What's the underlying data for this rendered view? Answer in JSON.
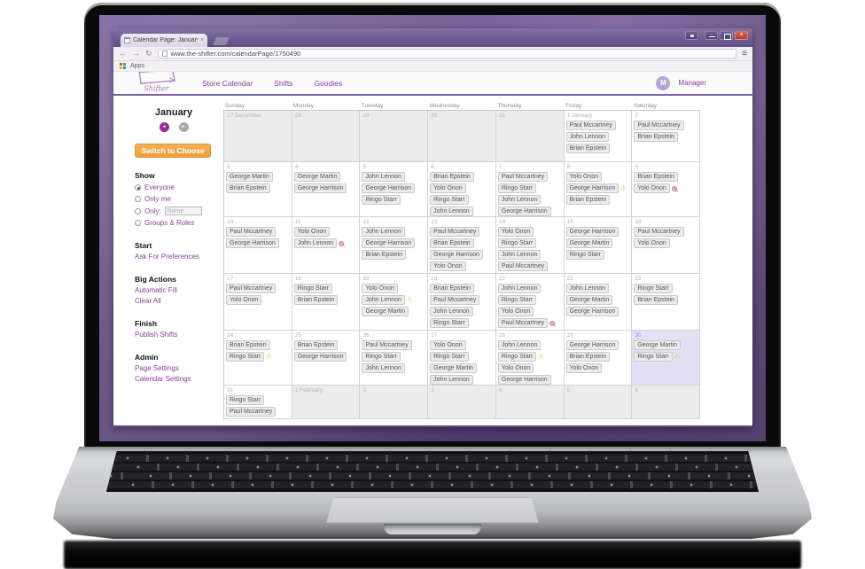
{
  "browser": {
    "tab_title": "Calendar Page: January | S",
    "url": "www.the-shifter.com/calendarPage/1750490",
    "bookmarks_label": "Apps"
  },
  "header": {
    "logo_text": "Shifter",
    "nav": [
      {
        "label": "Store Calendar"
      },
      {
        "label": "Shifts"
      },
      {
        "label": "Goodies"
      }
    ],
    "avatar_initial": "M",
    "user_role": "Manager"
  },
  "sidebar": {
    "month": "January",
    "switch_button": "Switch to Choose",
    "show": {
      "heading": "Show",
      "options": [
        {
          "label": "Everyone",
          "checked": true
        },
        {
          "label": "Only me",
          "checked": false
        },
        {
          "label": "Only:",
          "checked": false,
          "input_placeholder": "Name"
        },
        {
          "label": "Groups & Roles",
          "checked": false
        }
      ]
    },
    "sections": [
      {
        "heading": "Start",
        "links": [
          "Ask For Preferences"
        ]
      },
      {
        "heading": "Big Actions",
        "links": [
          "Automatic Fill",
          "Clear All"
        ]
      },
      {
        "heading": "Finish",
        "links": [
          "Publish Shifts"
        ]
      },
      {
        "heading": "Admin",
        "links": [
          "Page Settings",
          "Calendar Settings"
        ]
      }
    ]
  },
  "calendar": {
    "weekday_headers": [
      "Sunday",
      "Monday",
      "Tuesday",
      "Wednesday",
      "Thursday",
      "Friday",
      "Saturday"
    ],
    "weeks": [
      [
        {
          "day": "27 December",
          "outside": true
        },
        {
          "day": "28",
          "outside": true
        },
        {
          "day": "29",
          "outside": true
        },
        {
          "day": "30",
          "outside": true
        },
        {
          "day": "31",
          "outside": true
        },
        {
          "day": "1 January",
          "shifts": [
            {
              "name": "Paul Mccartney"
            },
            {
              "name": "John Lennon"
            },
            {
              "name": "Brian Epstein"
            }
          ]
        },
        {
          "day": "2",
          "shifts": [
            {
              "name": "Paul Mccartney"
            },
            {
              "name": "Brian Epstein"
            }
          ]
        }
      ],
      [
        {
          "day": "3",
          "shifts": [
            {
              "name": "George Martin"
            },
            {
              "name": "Brian Epstein"
            }
          ]
        },
        {
          "day": "4",
          "shifts": [
            {
              "name": "George Martin"
            },
            {
              "name": "George Harrison"
            }
          ]
        },
        {
          "day": "5",
          "shifts": [
            {
              "name": "John Lennon"
            },
            {
              "name": "George Harrison"
            },
            {
              "name": "Ringo Starr"
            }
          ]
        },
        {
          "day": "6",
          "shifts": [
            {
              "name": "Brian Epstein"
            },
            {
              "name": "Yolo Onon"
            },
            {
              "name": "Ringo Starr"
            },
            {
              "name": "John Lennon"
            }
          ]
        },
        {
          "day": "7",
          "shifts": [
            {
              "name": "Paul Mccartney"
            },
            {
              "name": "Ringo Starr"
            },
            {
              "name": "John Lennon"
            },
            {
              "name": "George Harrison"
            }
          ]
        },
        {
          "day": "8",
          "shifts": [
            {
              "name": "Yolo Onon"
            },
            {
              "name": "George Harrison",
              "icon": "warning"
            },
            {
              "name": "Brian Epstein"
            }
          ]
        },
        {
          "day": "9",
          "shifts": [
            {
              "name": "Brian Epstein"
            },
            {
              "name": "Yolo Onon",
              "icon": "blocked"
            }
          ]
        }
      ],
      [
        {
          "day": "10",
          "shifts": [
            {
              "name": "Paul Mccartney"
            },
            {
              "name": "George Harrison"
            }
          ]
        },
        {
          "day": "11",
          "shifts": [
            {
              "name": "Yolo Onon"
            },
            {
              "name": "John Lennon",
              "icon": "blocked"
            }
          ]
        },
        {
          "day": "12",
          "shifts": [
            {
              "name": "John Lennon"
            },
            {
              "name": "George Harrison"
            },
            {
              "name": "Brian Epstein"
            }
          ]
        },
        {
          "day": "13",
          "shifts": [
            {
              "name": "Paul Mccartney"
            },
            {
              "name": "Brian Epstein"
            },
            {
              "name": "George Harrison"
            },
            {
              "name": "Yolo Onon"
            }
          ]
        },
        {
          "day": "14",
          "shifts": [
            {
              "name": "Yolo Onon"
            },
            {
              "name": "Ringo Starr"
            },
            {
              "name": "John Lennon"
            },
            {
              "name": "Paul Mccartney"
            }
          ]
        },
        {
          "day": "15",
          "shifts": [
            {
              "name": "George Harrison"
            },
            {
              "name": "George Martin"
            },
            {
              "name": "Ringo Starr"
            }
          ]
        },
        {
          "day": "16",
          "shifts": [
            {
              "name": "Paul Mccartney"
            },
            {
              "name": "Yolo Onon"
            }
          ]
        }
      ],
      [
        {
          "day": "17",
          "shifts": [
            {
              "name": "Paul Mccartney"
            },
            {
              "name": "Yolo Onon"
            }
          ]
        },
        {
          "day": "18",
          "shifts": [
            {
              "name": "Ringo Starr"
            },
            {
              "name": "Brian Epstein"
            }
          ]
        },
        {
          "day": "19",
          "shifts": [
            {
              "name": "Yolo Onon"
            },
            {
              "name": "John Lennon",
              "icon": "warning"
            },
            {
              "name": "George Martin"
            }
          ]
        },
        {
          "day": "20",
          "shifts": [
            {
              "name": "Brian Epstein"
            },
            {
              "name": "Paul Mccartney"
            },
            {
              "name": "John Lennon"
            },
            {
              "name": "Ringo Starr"
            }
          ]
        },
        {
          "day": "21",
          "shifts": [
            {
              "name": "John Lennon"
            },
            {
              "name": "Ringo Starr"
            },
            {
              "name": "Yolo Onon"
            },
            {
              "name": "Paul Mccartney",
              "icon": "blocked"
            }
          ]
        },
        {
          "day": "22",
          "shifts": [
            {
              "name": "John Lennon"
            },
            {
              "name": "George Martin"
            },
            {
              "name": "George Harrison"
            }
          ]
        },
        {
          "day": "23",
          "shifts": [
            {
              "name": "Ringo Starr"
            },
            {
              "name": "Brian Epstein"
            }
          ]
        }
      ],
      [
        {
          "day": "24",
          "shifts": [
            {
              "name": "Brian Epstein"
            },
            {
              "name": "Ringo Starr",
              "icon": "warning"
            }
          ]
        },
        {
          "day": "25",
          "shifts": [
            {
              "name": "Brian Epstein"
            },
            {
              "name": "George Harrison"
            }
          ]
        },
        {
          "day": "26",
          "shifts": [
            {
              "name": "Paul Mccartney"
            },
            {
              "name": "Ringo Starr"
            },
            {
              "name": "John Lennon"
            }
          ]
        },
        {
          "day": "27",
          "shifts": [
            {
              "name": "Yolo Onon"
            },
            {
              "name": "Ringo Starr"
            },
            {
              "name": "George Martin"
            },
            {
              "name": "John Lennon"
            }
          ]
        },
        {
          "day": "28",
          "shifts": [
            {
              "name": "John Lennon"
            },
            {
              "name": "Ringo Starr",
              "icon": "warning"
            },
            {
              "name": "Yolo Onon"
            },
            {
              "name": "George Harrison"
            }
          ]
        },
        {
          "day": "29",
          "shifts": [
            {
              "name": "George Harrison"
            },
            {
              "name": "Brian Epstein"
            },
            {
              "name": "Yolo Onon"
            }
          ]
        },
        {
          "day": "30",
          "selected": true,
          "shifts": [
            {
              "name": "George Martin"
            },
            {
              "name": "Ringo Starr",
              "icon": "warning"
            }
          ]
        }
      ],
      [
        {
          "day": "31",
          "shifts": [
            {
              "name": "Ringo Starr"
            },
            {
              "name": "Paul Mccartney"
            }
          ]
        },
        {
          "day": "1 February",
          "outside": true
        },
        {
          "day": "2",
          "outside": true
        },
        {
          "day": "3",
          "outside": true
        },
        {
          "day": "4",
          "outside": true
        },
        {
          "day": "5",
          "outside": true
        },
        {
          "day": "6",
          "outside": true
        }
      ]
    ]
  },
  "icons": {
    "back": "←",
    "forward": "→",
    "refresh": "↻",
    "menu": "≡",
    "tab-close": "×",
    "close": "×",
    "prev": "◄",
    "next": "►",
    "warning": "⚠",
    "blocked": ""
  },
  "colors": {
    "accent_purple": "#8a3f9b",
    "header_border_purple": "#7c5fa5",
    "switch_button_orange": "#f0a44a",
    "selected_day_bg": "#e4e0f3",
    "warning_yellow": "#f2b21d",
    "blocked_pink": "#d2808d",
    "close_button_red": "#af3a2b",
    "avatar_bg": "#b1a6d8",
    "desktop_purple": "#6f5a92"
  }
}
